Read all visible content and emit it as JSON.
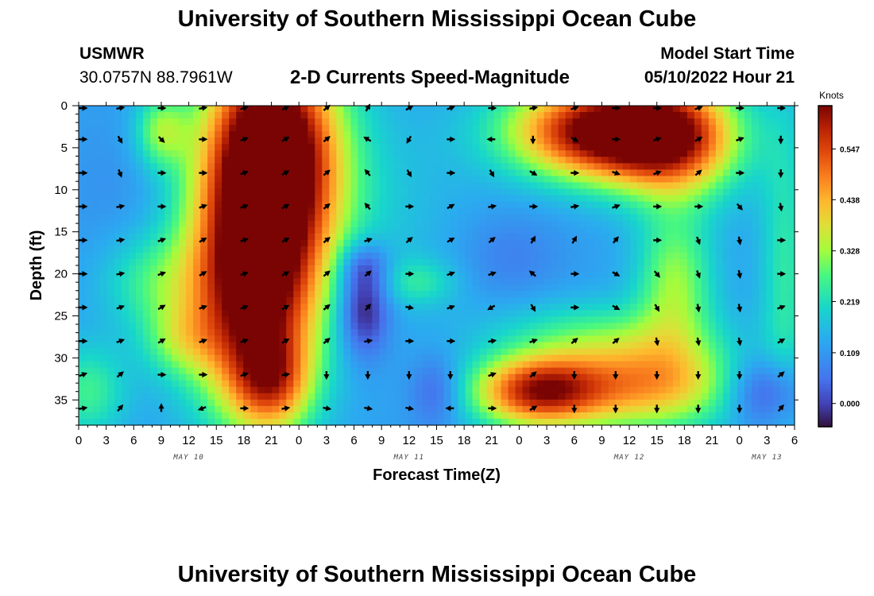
{
  "header": {
    "title": "University of Southern Mississippi Ocean Cube",
    "station": "USMWR",
    "coords": "30.0757N  88.7961W",
    "subtitle": "2-D Currents Speed-Magnitude",
    "model_start_label": "Model Start Time",
    "model_start_value": "05/10/2022 Hour 21"
  },
  "footer": {
    "title": "University of Southern Mississippi Ocean Cube"
  },
  "chart_data": {
    "type": "heatmap",
    "title": "2-D Currents Speed-Magnitude",
    "xlabel": "Forecast Time(Z)",
    "ylabel": "Depth (ft)",
    "x_unit": "hours since 2022-05-10 00Z",
    "xlim": [
      0,
      78
    ],
    "ylim": [
      0,
      38
    ],
    "y_inverted": true,
    "x_ticks": [
      0,
      3,
      6,
      9,
      12,
      15,
      18,
      21,
      24,
      27,
      30,
      33,
      36,
      39,
      42,
      45,
      48,
      51,
      54,
      57,
      60,
      63,
      66,
      69,
      72,
      75,
      78
    ],
    "x_tick_labels": [
      "0",
      "3",
      "6",
      "9",
      "12",
      "15",
      "18",
      "21",
      "0",
      "3",
      "6",
      "9",
      "12",
      "15",
      "18",
      "21",
      "0",
      "3",
      "6",
      "9",
      "12",
      "15",
      "18",
      "21",
      "0",
      "3",
      "6"
    ],
    "day_labels": [
      {
        "x": 12,
        "label": "MAY 10"
      },
      {
        "x": 36,
        "label": "MAY 11"
      },
      {
        "x": 60,
        "label": "MAY 12"
      },
      {
        "x": 75,
        "label": "MAY 13"
      }
    ],
    "y_ticks": [
      0,
      5,
      10,
      15,
      20,
      25,
      30,
      35
    ],
    "y_tick_labels": [
      "0",
      "5",
      "10",
      "15",
      "20",
      "25",
      "30",
      "35"
    ],
    "colorbar": {
      "label": "Knots",
      "min": -0.05,
      "max": 0.64,
      "ticks": [
        0.0,
        0.109,
        0.219,
        0.328,
        0.438,
        0.547
      ],
      "tick_labels": [
        "0.000",
        "0.109",
        "0.219",
        "0.328",
        "0.438",
        "0.547"
      ]
    },
    "speed_blobs": [
      {
        "t": 21,
        "d": 5,
        "st": 5,
        "sd": 9,
        "amp": 0.62
      },
      {
        "t": 19,
        "d": 22,
        "st": 5,
        "sd": 10,
        "amp": 0.55
      },
      {
        "t": 21,
        "d": 33,
        "st": 3,
        "sd": 4,
        "amp": 0.25
      },
      {
        "t": 8,
        "d": 21,
        "st": 4,
        "sd": 4,
        "amp": 0.12
      },
      {
        "t": 9,
        "d": 3,
        "st": 2,
        "sd": 3,
        "amp": 0.18
      },
      {
        "t": 57,
        "d": 3,
        "st": 7,
        "sd": 4,
        "amp": 0.55
      },
      {
        "t": 65,
        "d": 4,
        "st": 5,
        "sd": 5,
        "amp": 0.35
      },
      {
        "t": 50,
        "d": 34,
        "st": 5,
        "sd": 3,
        "amp": 0.45
      },
      {
        "t": 62,
        "d": 33,
        "st": 7,
        "sd": 4,
        "amp": 0.32
      },
      {
        "t": 65,
        "d": 21,
        "st": 3,
        "sd": 6,
        "amp": 0.2
      },
      {
        "t": 37,
        "d": 21,
        "st": 3,
        "sd": 2,
        "amp": 0.1
      },
      {
        "t": 55,
        "d": 27,
        "st": 8,
        "sd": 3,
        "amp": 0.1
      },
      {
        "t": 1,
        "d": 34,
        "st": 3,
        "sd": 4,
        "amp": 0.14
      },
      {
        "t": 11,
        "d": 28,
        "st": 3,
        "sd": 3,
        "amp": 0.12
      },
      {
        "t": 77,
        "d": 20,
        "st": 2,
        "sd": 14,
        "amp": 0.12
      },
      {
        "t": 30,
        "d": 12,
        "st": 8,
        "sd": 9,
        "amp": 0.06
      },
      {
        "t": 4,
        "d": 10,
        "st": 4,
        "sd": 6,
        "amp": -0.02
      },
      {
        "t": 31,
        "d": 24,
        "st": 2,
        "sd": 4,
        "amp": -0.2
      },
      {
        "t": 31,
        "d": 19,
        "st": 2,
        "sd": 2,
        "amp": -0.1
      },
      {
        "t": 39,
        "d": 34,
        "st": 2,
        "sd": 3,
        "amp": -0.1
      },
      {
        "t": 75,
        "d": 34,
        "st": 3,
        "sd": 3,
        "amp": -0.16
      },
      {
        "t": 47,
        "d": 18,
        "st": 4,
        "sd": 4,
        "amp": -0.05
      }
    ],
    "vectors": {
      "times": [
        0,
        4.5,
        9,
        13.5,
        18,
        22.5,
        27,
        31.5,
        36,
        40.5,
        45,
        49.5,
        54,
        58.5,
        63,
        67.5,
        72,
        76.5
      ],
      "depths": [
        0,
        4,
        8,
        12,
        16,
        20,
        24,
        28,
        32,
        36
      ],
      "angles_deg": [
        [
          0,
          10,
          0,
          10,
          20,
          30,
          40,
          60,
          30,
          20,
          0,
          10,
          20,
          0,
          0,
          20,
          0,
          0
        ],
        [
          0,
          -60,
          -45,
          0,
          20,
          30,
          40,
          150,
          -120,
          0,
          180,
          -90,
          -30,
          0,
          20,
          30,
          20,
          -90
        ],
        [
          0,
          -70,
          0,
          0,
          20,
          30,
          40,
          130,
          -60,
          0,
          -60,
          -30,
          0,
          -20,
          20,
          40,
          0,
          -90
        ],
        [
          0,
          10,
          0,
          20,
          20,
          30,
          40,
          130,
          0,
          30,
          10,
          0,
          10,
          20,
          0,
          0,
          -50,
          -80
        ],
        [
          0,
          10,
          20,
          30,
          20,
          30,
          40,
          20,
          40,
          30,
          40,
          60,
          60,
          50,
          0,
          -70,
          -80,
          0
        ],
        [
          0,
          10,
          20,
          30,
          20,
          30,
          40,
          40,
          0,
          20,
          20,
          140,
          0,
          -30,
          -50,
          -70,
          -80,
          0
        ],
        [
          0,
          20,
          30,
          20,
          20,
          30,
          40,
          50,
          -10,
          20,
          -150,
          -60,
          0,
          -30,
          -60,
          -80,
          -80,
          20
        ],
        [
          0,
          20,
          30,
          20,
          20,
          30,
          40,
          10,
          0,
          0,
          10,
          20,
          40,
          40,
          -80,
          -80,
          -80,
          30
        ],
        [
          20,
          40,
          0,
          0,
          20,
          10,
          -90,
          -90,
          -90,
          -90,
          20,
          40,
          -90,
          -90,
          -90,
          -90,
          -90,
          40
        ],
        [
          10,
          50,
          90,
          -160,
          0,
          10,
          -10,
          -10,
          -10,
          180,
          0,
          30,
          -90,
          -90,
          -90,
          -90,
          -90,
          50
        ]
      ]
    }
  }
}
